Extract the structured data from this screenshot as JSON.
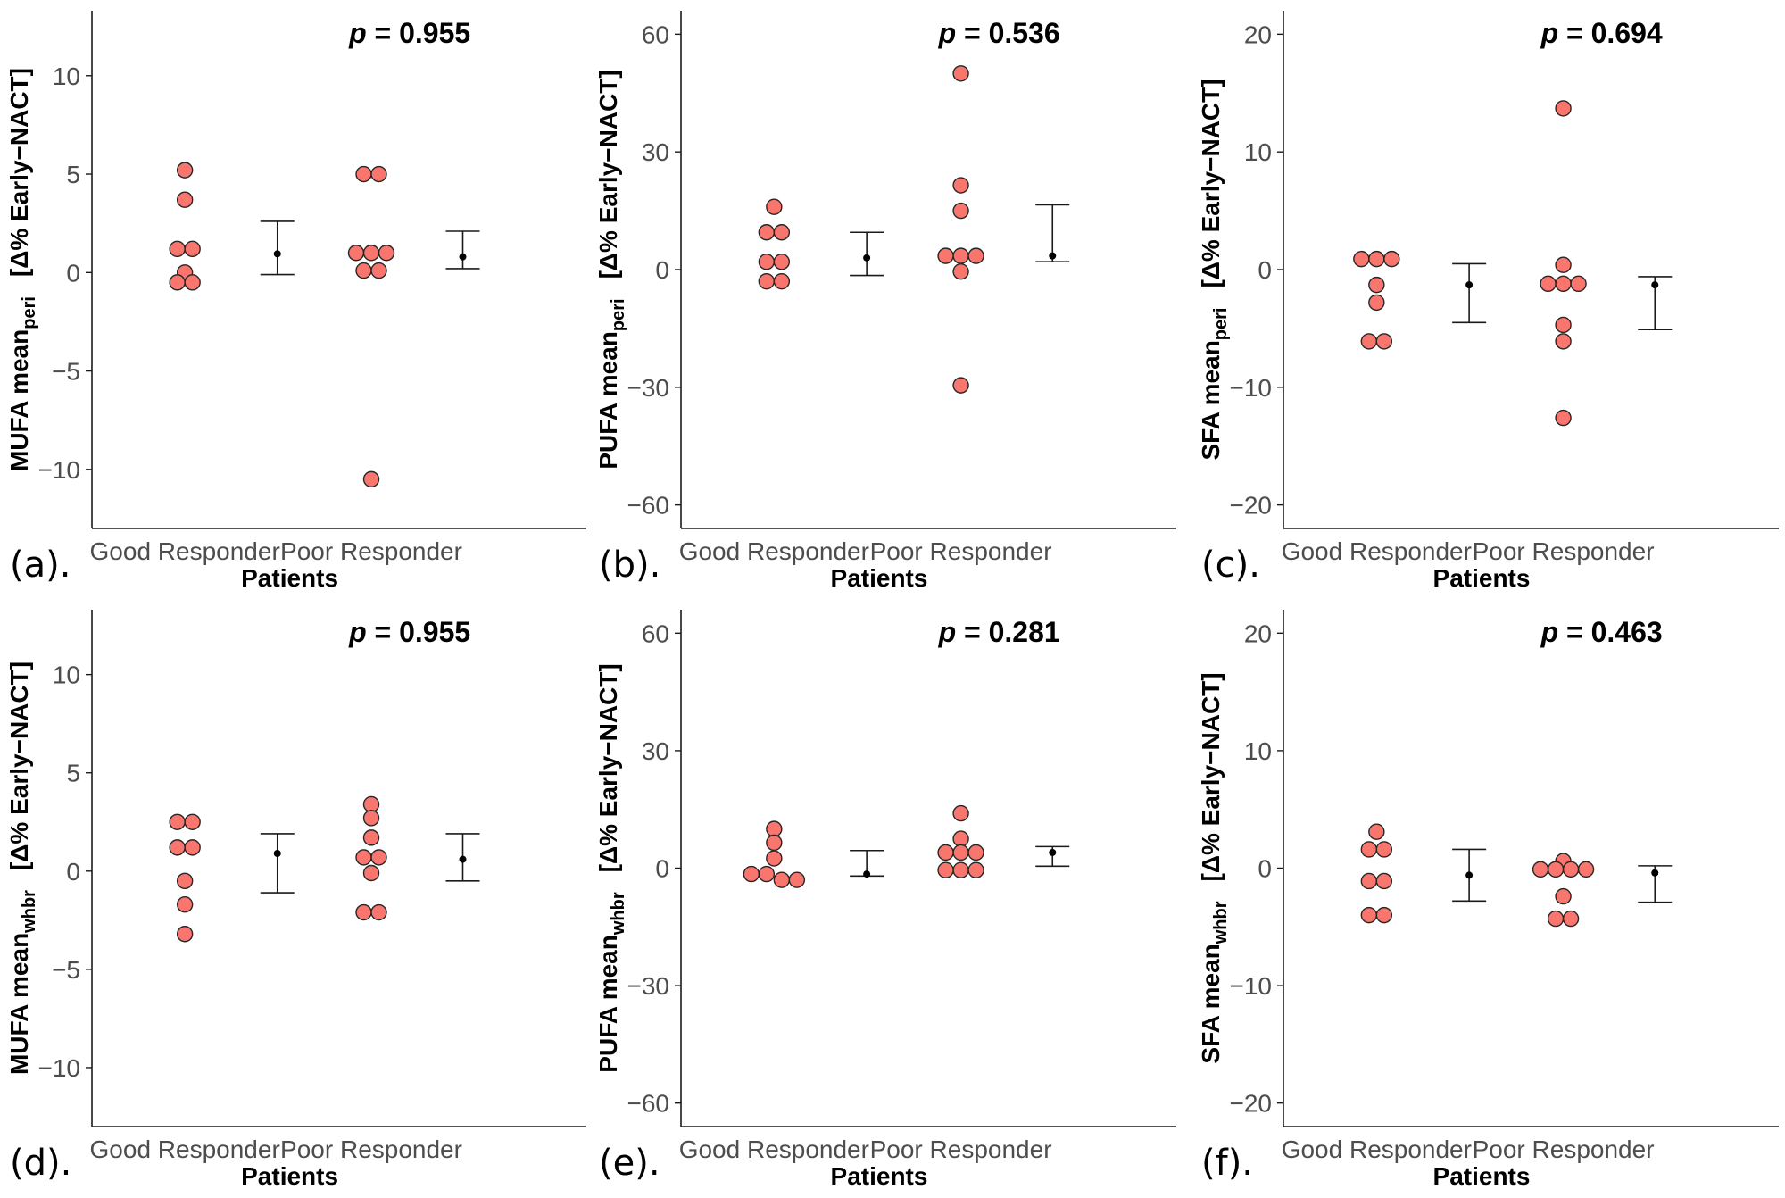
{
  "chart_data": [
    {
      "type": "scatter",
      "panel_label": "(a).",
      "p_label": "p",
      "p_text": " = 0.955",
      "ylabel_main": "MUFA mean",
      "ylabel_sub": "peri",
      "ylabel_tail": "[Δ% Early−NACT]",
      "xlabel": "Patients",
      "categories": [
        "Good Responder",
        "Poor Responder"
      ],
      "ylim": [
        -13,
        13.3
      ],
      "yticks": [
        -10,
        -5,
        0,
        5,
        10
      ],
      "ytick_labels": [
        "−10",
        "−5",
        "0",
        "5",
        "10"
      ],
      "series": [
        {
          "name": "Good Responder",
          "points": [
            5.2,
            3.7,
            1.2,
            1.2,
            0,
            -0.5,
            -0.5
          ],
          "mean": 0.95,
          "ci": [
            -0.1,
            2.6
          ]
        },
        {
          "name": "Poor Responder",
          "points": [
            5.0,
            5.0,
            1.0,
            1.0,
            1.0,
            0.1,
            0.1,
            -10.5
          ],
          "mean": 0.8,
          "ci": [
            0.2,
            2.1
          ]
        }
      ]
    },
    {
      "type": "scatter",
      "panel_label": "(b).",
      "p_label": "p",
      "p_text": " = 0.536",
      "ylabel_main": "PUFA mean",
      "ylabel_sub": "peri",
      "ylabel_tail": "[Δ% Early−NACT]",
      "xlabel": "Patients",
      "categories": [
        "Good Responder",
        "Poor Responder"
      ],
      "ylim": [
        -66,
        66
      ],
      "yticks": [
        -60,
        -30,
        0,
        30,
        60
      ],
      "ytick_labels": [
        "−60",
        "−30",
        "0",
        "30",
        "60"
      ],
      "series": [
        {
          "name": "Good Responder",
          "points": [
            16,
            9.5,
            9.5,
            2,
            2,
            -3,
            -3
          ],
          "mean": 3,
          "ci": [
            -1.5,
            9.5
          ]
        },
        {
          "name": "Poor Responder",
          "points": [
            50,
            21.5,
            15,
            3.5,
            3.5,
            3.5,
            -0.5,
            -29.5
          ],
          "mean": 3.5,
          "ci": [
            2,
            16.5
          ]
        }
      ]
    },
    {
      "type": "scatter",
      "panel_label": "(c).",
      "p_label": "p",
      "p_text": " = 0.694",
      "ylabel_main": "SFA mean",
      "ylabel_sub": "peri",
      "ylabel_tail": "[Δ% Early−NACT]",
      "xlabel": "Patients",
      "categories": [
        "Good Responder",
        "Poor Responder"
      ],
      "ylim": [
        -22,
        22
      ],
      "yticks": [
        -20,
        -10,
        0,
        10,
        20
      ],
      "ytick_labels": [
        "−20",
        "−10",
        "0",
        "10",
        "20"
      ],
      "series": [
        {
          "name": "Good Responder",
          "points": [
            0.9,
            0.9,
            0.9,
            -1.3,
            -2.8,
            -6.1,
            -6.1
          ],
          "mean": -1.3,
          "ci": [
            -4.5,
            0.5
          ]
        },
        {
          "name": "Poor Responder",
          "points": [
            13.7,
            0.4,
            -1.2,
            -1.2,
            -1.2,
            -4.7,
            -6.1,
            -12.6
          ],
          "mean": -1.3,
          "ci": [
            -5.1,
            -0.6
          ]
        }
      ]
    },
    {
      "type": "scatter",
      "panel_label": "(d).",
      "p_label": "p",
      "p_text": " = 0.955",
      "ylabel_main": "MUFA mean",
      "ylabel_sub": "whbr",
      "ylabel_tail": "[Δ% Early−NACT]",
      "xlabel": "Patients",
      "categories": [
        "Good Responder",
        "Poor Responder"
      ],
      "ylim": [
        -13,
        13.3
      ],
      "yticks": [
        -10,
        -5,
        0,
        5,
        10
      ],
      "ytick_labels": [
        "−10",
        "−5",
        "0",
        "5",
        "10"
      ],
      "series": [
        {
          "name": "Good Responder",
          "points": [
            2.5,
            2.5,
            1.2,
            1.2,
            -0.5,
            -1.7,
            -3.2
          ],
          "mean": 0.9,
          "ci": [
            -1.1,
            1.9
          ]
        },
        {
          "name": "Poor Responder",
          "points": [
            3.4,
            2.7,
            1.7,
            0.7,
            0.7,
            -0.1,
            -2.1,
            -2.1
          ],
          "mean": 0.6,
          "ci": [
            -0.5,
            1.9
          ]
        }
      ]
    },
    {
      "type": "scatter",
      "panel_label": "(e).",
      "p_label": "p",
      "p_text": " = 0.281",
      "ylabel_main": "PUFA mean",
      "ylabel_sub": "whbr",
      "ylabel_tail": "[Δ% Early−NACT]",
      "xlabel": "Patients",
      "categories": [
        "Good Responder",
        "Poor Responder"
      ],
      "ylim": [
        -66,
        66
      ],
      "yticks": [
        -60,
        -30,
        0,
        30,
        60
      ],
      "ytick_labels": [
        "−60",
        "−30",
        "0",
        "30",
        "60"
      ],
      "series": [
        {
          "name": "Good Responder",
          "points": [
            10,
            6.5,
            2.5,
            -1.5,
            -1.5,
            -3,
            -3
          ],
          "mean": -1.5,
          "ci": [
            -2,
            4.5
          ]
        },
        {
          "name": "Poor Responder",
          "points": [
            14,
            7.5,
            4,
            4,
            4,
            -0.5,
            -0.5,
            -0.5
          ],
          "mean": 4,
          "ci": [
            0.5,
            5.5
          ]
        }
      ]
    },
    {
      "type": "scatter",
      "panel_label": "(f).",
      "p_label": "p",
      "p_text": " = 0.463",
      "ylabel_main": "SFA mean",
      "ylabel_sub": "whbr",
      "ylabel_tail": "[Δ% Early−NACT]",
      "xlabel": "Patients",
      "categories": [
        "Good Responder",
        "Poor Responder"
      ],
      "ylim": [
        -22,
        22
      ],
      "yticks": [
        -20,
        -10,
        0,
        10,
        20
      ],
      "ytick_labels": [
        "−20",
        "−10",
        "0",
        "10",
        "20"
      ],
      "series": [
        {
          "name": "Good Responder",
          "points": [
            3.1,
            1.6,
            1.6,
            -1.1,
            -1.1,
            -4.0,
            -4.0
          ],
          "mean": -0.6,
          "ci": [
            -2.8,
            1.6
          ]
        },
        {
          "name": "Poor Responder",
          "points": [
            0.6,
            -0.1,
            -0.1,
            -0.1,
            -0.1,
            -2.4,
            -4.3,
            -4.3
          ],
          "mean": -0.4,
          "ci": [
            -2.9,
            0.2
          ]
        }
      ]
    }
  ],
  "colors": {
    "point_fill": "#F8766D",
    "point_stroke": "#262626",
    "axis": "#1a1a1a"
  }
}
